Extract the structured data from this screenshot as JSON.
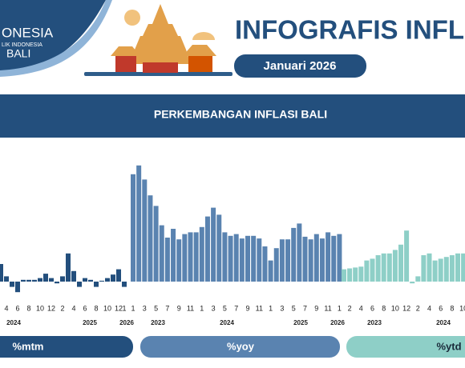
{
  "header": {
    "logo_lines": [
      "ONESIA",
      "LIK INDONESIA",
      "BALI"
    ],
    "title": "INFOGRAFIS INFLA",
    "date": "Januari 2026"
  },
  "chart_data": {
    "type": "bar",
    "title": "PERKEMBANGAN INFLASI BALI",
    "series": [
      {
        "name": "%mtm",
        "color": "#234f7d",
        "categories": [
          null,
          "4",
          null,
          "6",
          null,
          "8",
          null,
          "10",
          null,
          "12",
          null,
          "2",
          null,
          "4",
          null,
          "6",
          null,
          "8",
          null,
          "10",
          null,
          "12",
          "1"
        ],
        "years": [
          "2024",
          "2025",
          "2026"
        ],
        "values": [
          1.0,
          0.3,
          -0.3,
          -0.6,
          0.1,
          0.1,
          0.1,
          0.2,
          0.45,
          0.2,
          -0.1,
          0.3,
          1.6,
          0.6,
          -0.3,
          0.2,
          0.1,
          -0.3,
          0.05,
          0.2,
          0.4,
          0.7,
          -0.3
        ]
      },
      {
        "name": "%yoy",
        "color": "#5a83b0",
        "categories": [
          "1",
          null,
          "3",
          null,
          "5",
          null,
          "7",
          null,
          "9",
          null,
          "11",
          null,
          "1",
          null,
          "3",
          null,
          "5",
          null,
          "7",
          null,
          "9",
          null,
          "11",
          null,
          "1",
          null,
          "3",
          null,
          "5",
          null,
          "7",
          null,
          "9",
          null,
          "11",
          null,
          "1"
        ],
        "years": [
          "2023",
          "2024",
          "2025",
          "2026"
        ],
        "values": [
          6.1,
          6.6,
          5.8,
          4.9,
          4.3,
          3.2,
          2.5,
          3.0,
          2.4,
          2.7,
          2.8,
          2.8,
          3.1,
          3.7,
          4.2,
          3.8,
          2.8,
          2.6,
          2.7,
          2.45,
          2.6,
          2.6,
          2.45,
          2.0,
          1.2,
          1.9,
          2.4,
          2.4,
          3.05,
          3.3,
          2.55,
          2.4,
          2.7,
          2.45,
          2.8,
          2.6,
          2.7
        ]
      },
      {
        "name": "%ytd",
        "color": "#8ecfc7",
        "categories": [
          null,
          "2",
          null,
          "4",
          null,
          "6",
          null,
          "8",
          null,
          "10",
          null,
          "12",
          null,
          "2",
          null,
          "4",
          null,
          "6",
          null,
          "8",
          null,
          "10"
        ],
        "years": [
          "2023",
          "2024"
        ],
        "values": [
          0.7,
          0.75,
          0.8,
          0.85,
          1.2,
          1.3,
          1.5,
          1.6,
          1.6,
          1.8,
          2.1,
          2.9,
          -0.1,
          0.3,
          1.5,
          1.6,
          1.2,
          1.3,
          1.4,
          1.5,
          1.6,
          1.6
        ]
      }
    ]
  }
}
